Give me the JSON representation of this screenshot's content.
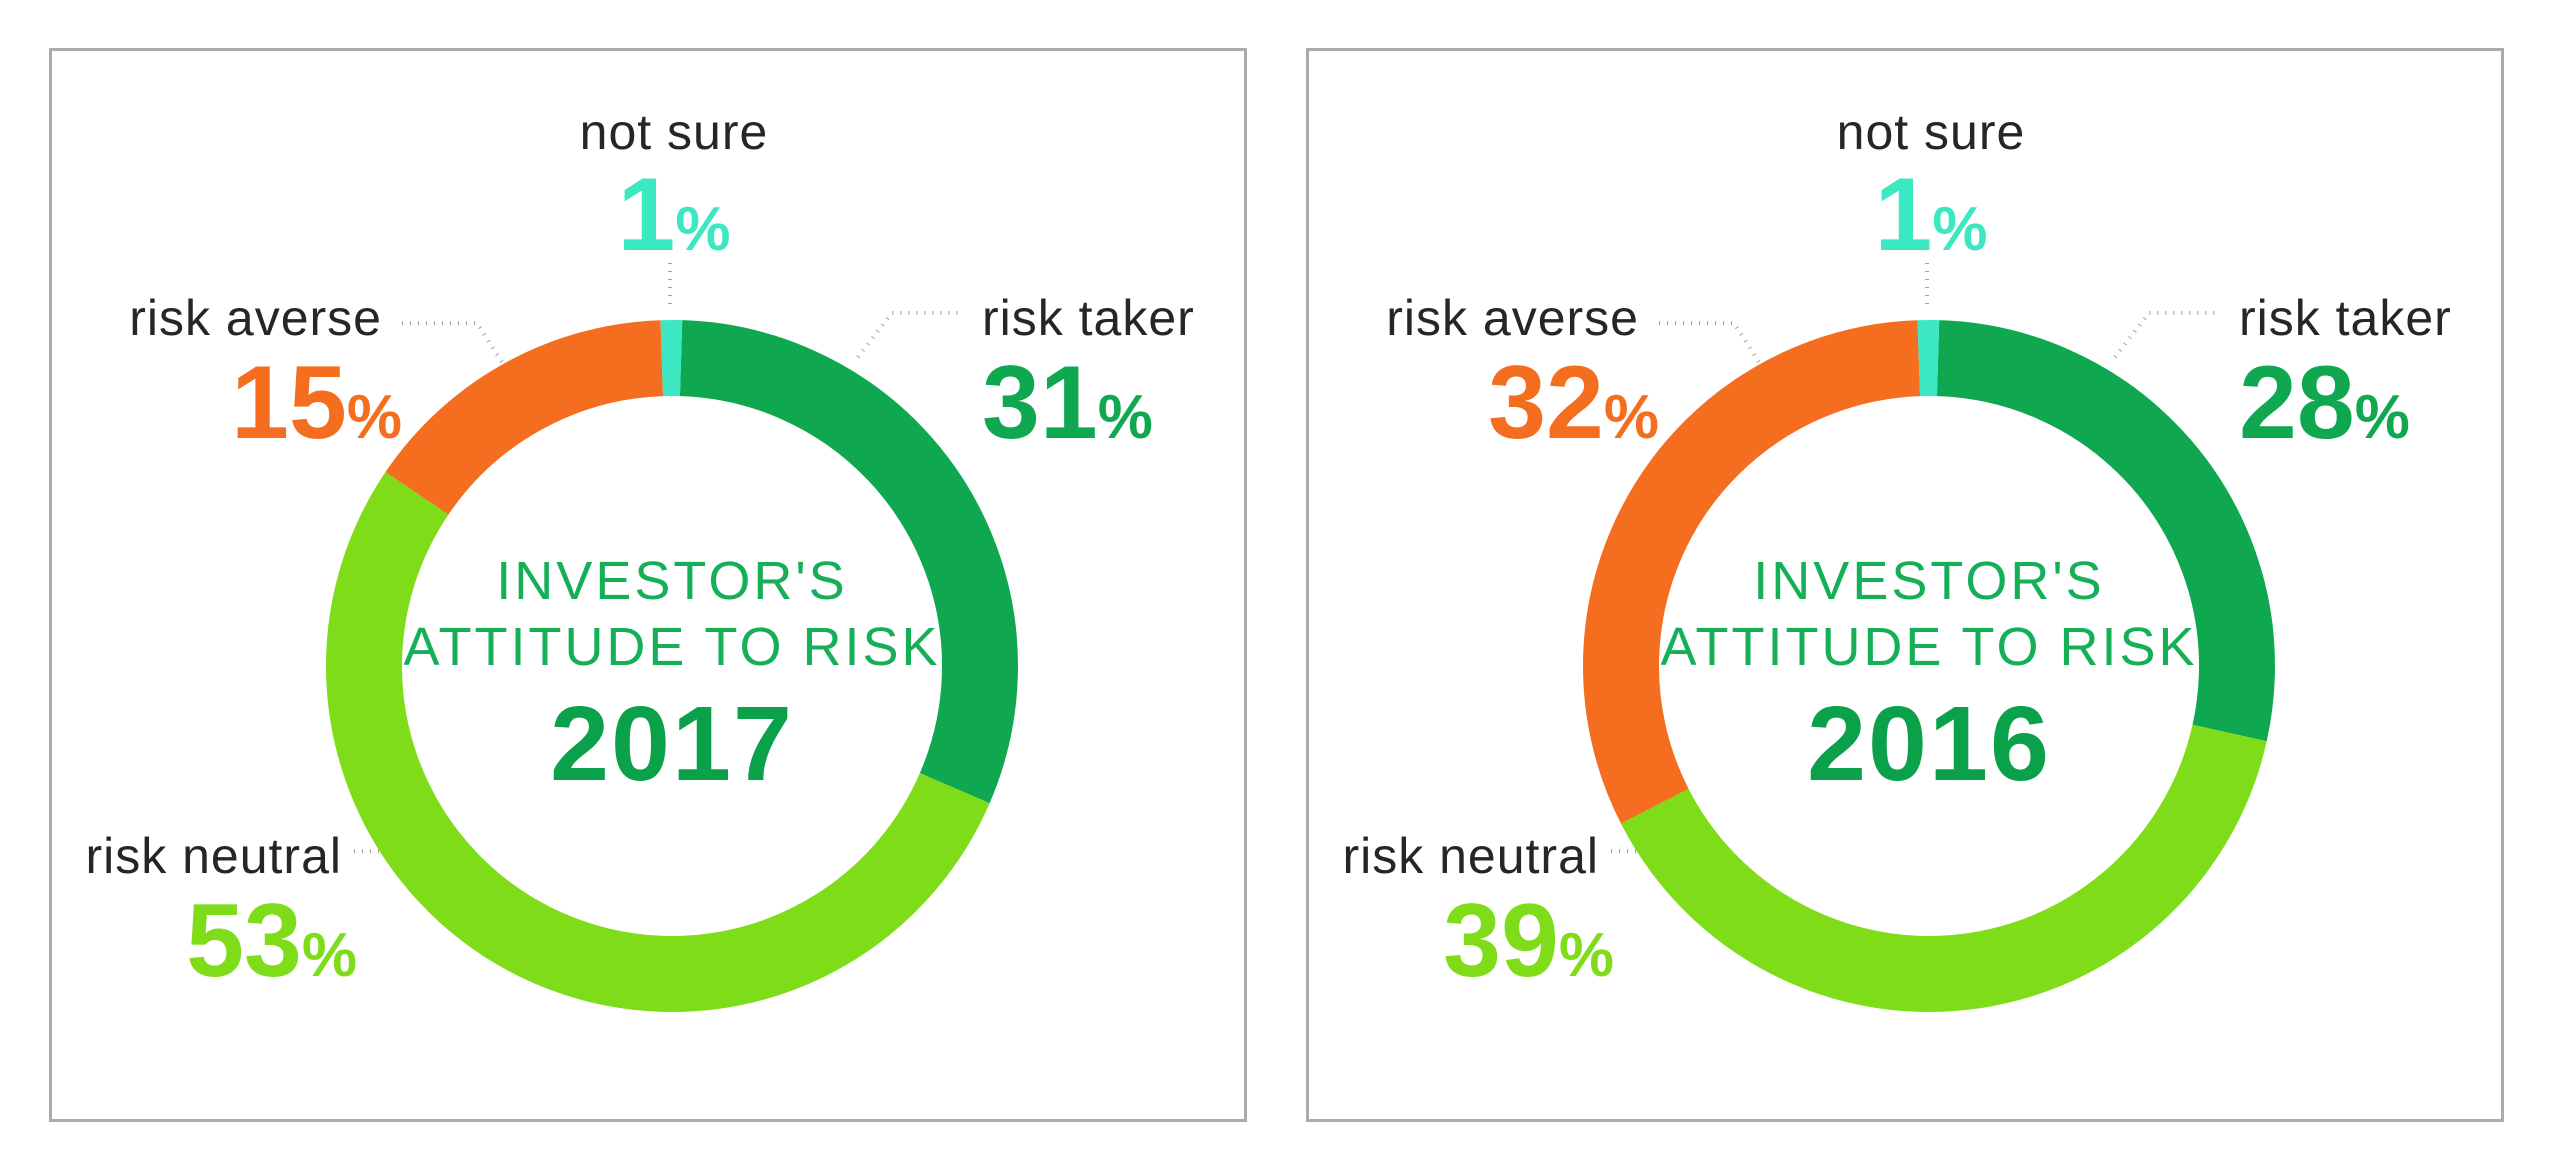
{
  "colors": {
    "background": "#FFFFFF",
    "panel_border": "#ABABAB",
    "label_text": "#292526",
    "leader_dots": "#A0A0A0",
    "title_green": "#15AF58",
    "year_green": "#0BA14B",
    "risk_taker_green": "#0FA851",
    "risk_neutral_green": "#7EDC19",
    "risk_averse_orange": "#F56D1E",
    "not_sure_cyan": "#3BE8C2"
  },
  "chart_data": [
    {
      "type": "pie",
      "subtype": "donut",
      "title": "INVESTOR'S ATTITUDE TO RISK 2017",
      "center_line1": "INVESTOR'S",
      "center_line2": "ATTITUDE TO RISK",
      "year": "2017",
      "unit": "%",
      "start": "top",
      "direction": "clockwise",
      "legend_position": "labels-around-donut",
      "segments": [
        {
          "label": "risk taker",
          "value": 31,
          "color": "#0FA851",
          "label_position": "right"
        },
        {
          "label": "risk neutral",
          "value": 53,
          "color": "#7EDC19",
          "label_position": "bottom-left"
        },
        {
          "label": "risk averse",
          "value": 15,
          "color": "#F56D1E",
          "label_position": "upper-left"
        },
        {
          "label": "not sure",
          "value": 1,
          "color": "#3BE8C2",
          "label_position": "top"
        }
      ]
    },
    {
      "type": "pie",
      "subtype": "donut",
      "title": "INVESTOR'S ATTITUDE TO RISK 2016",
      "center_line1": "INVESTOR'S",
      "center_line2": "ATTITUDE TO RISK",
      "year": "2016",
      "unit": "%",
      "start": "top",
      "direction": "clockwise",
      "legend_position": "labels-around-donut",
      "segments": [
        {
          "label": "risk taker",
          "value": 28,
          "color": "#0FA851",
          "label_position": "right"
        },
        {
          "label": "risk neutral",
          "value": 39,
          "color": "#7EDC19",
          "label_position": "bottom-left"
        },
        {
          "label": "risk averse",
          "value": 32,
          "color": "#F56D1E",
          "label_position": "upper-left"
        },
        {
          "label": "not sure",
          "value": 1,
          "color": "#3BE8C2",
          "label_position": "top"
        }
      ]
    }
  ]
}
